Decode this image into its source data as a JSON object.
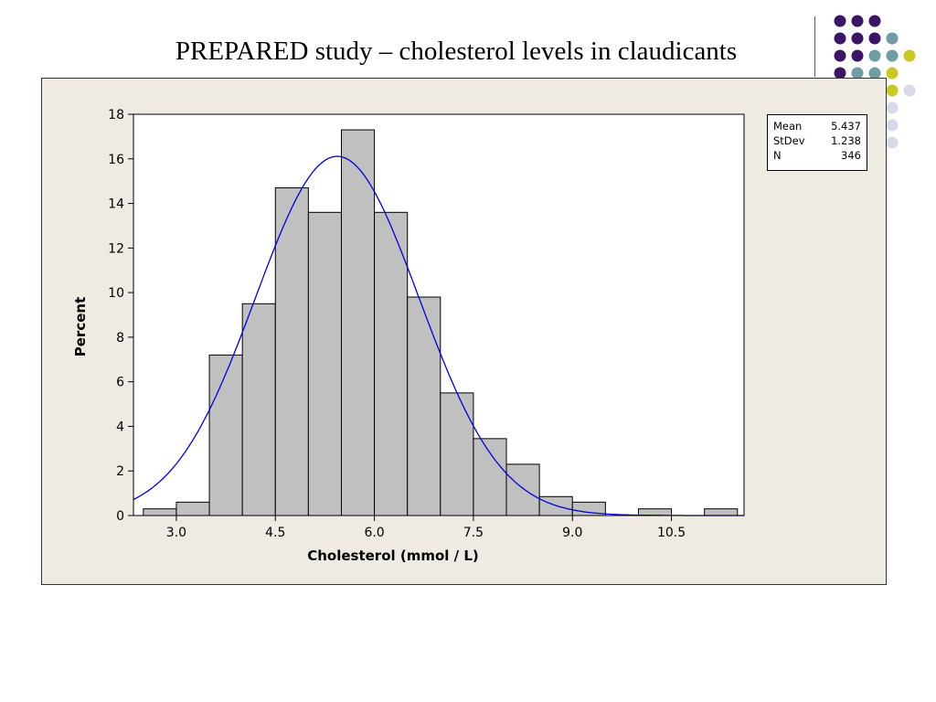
{
  "slide": {
    "title": "PREPARED study – cholesterol levels in claudicants"
  },
  "decoration": {
    "dot_colors": {
      "purple": "#3b1566",
      "teal": "#6e9ea1",
      "yellow": "#c9c824",
      "lavender": "#d8d9e9"
    }
  },
  "stats": [
    {
      "label": "Mean",
      "value": "5.437"
    },
    {
      "label": "StDev",
      "value": "1.238"
    },
    {
      "label": "N",
      "value": "346"
    }
  ],
  "chart_data": {
    "type": "bar",
    "xlabel": "Cholesterol (mmol / L)",
    "ylabel": "Percent",
    "xlim": [
      2.35,
      11.6
    ],
    "ylim": [
      0,
      18
    ],
    "xticks": [
      3.0,
      4.5,
      6.0,
      7.5,
      9.0,
      10.5
    ],
    "xtick_labels": [
      "3.0",
      "4.5",
      "6.0",
      "7.5",
      "9.0",
      "10.5"
    ],
    "yticks": [
      0,
      2,
      4,
      6,
      8,
      10,
      12,
      14,
      16,
      18
    ],
    "bin_width": 0.5,
    "bin_starts": [
      2.5,
      3.0,
      3.5,
      4.0,
      4.5,
      5.0,
      5.5,
      6.0,
      6.5,
      7.0,
      7.5,
      8.0,
      8.5,
      9.0,
      9.5,
      10.0,
      10.5,
      11.0
    ],
    "values": [
      0.3,
      0.6,
      7.2,
      9.5,
      14.7,
      13.6,
      17.3,
      13.6,
      9.8,
      5.5,
      3.45,
      2.3,
      0.85,
      0.6,
      0,
      0.3,
      0,
      0.3
    ],
    "fit": {
      "type": "normal",
      "mean": 5.437,
      "stdev": 1.238
    },
    "bar_color": "#c0c0c0",
    "curve_color": "#0000e0",
    "grid": false
  }
}
